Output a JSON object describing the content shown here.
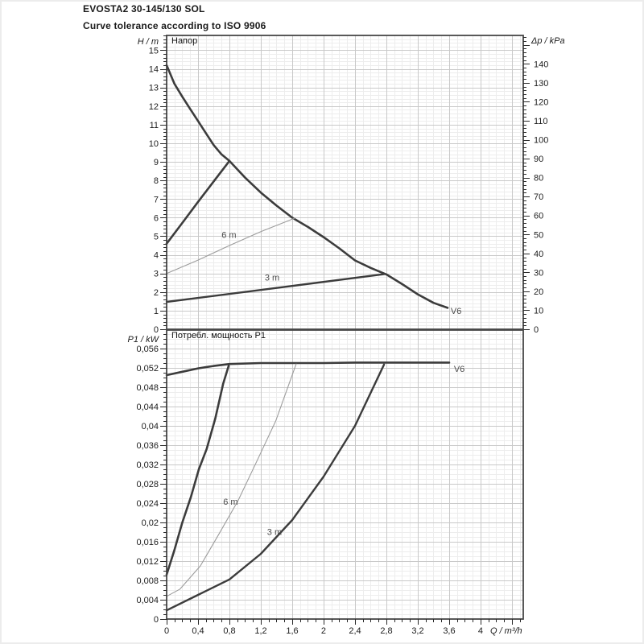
{
  "header": {
    "title": "EVOSTA2 30-145/130 SOL",
    "subtitle": "Curve tolerance according to ISO 9906"
  },
  "colors": {
    "curve_dark": "#3c3c3c",
    "curve_light": "#9c9c9c",
    "grid_major": "#c9c9c9",
    "grid_minor": "#ededed",
    "frame": "#474747",
    "text": "#1c1c1c"
  },
  "chart_data": [
    {
      "type": "line",
      "name": "head-chart",
      "title": "Напор",
      "ylabel": "H / m",
      "y2label": "Δp / kPa",
      "xlabel": "",
      "xlim": [
        0,
        4.544
      ],
      "ylim": [
        0,
        15.8
      ],
      "x_major": 0.4,
      "x_minor": 0.1,
      "y_major": 1,
      "y_minor": 0.2,
      "y_ticks": [
        "0",
        "1",
        "2",
        "3",
        "4",
        "5",
        "6",
        "7",
        "8",
        "9",
        "10",
        "11",
        "12",
        "13",
        "14",
        "15"
      ],
      "y2_ticks": [
        "0",
        "10",
        "20",
        "30",
        "40",
        "50",
        "60",
        "70",
        "80",
        "90",
        "100",
        "110",
        "120",
        "130",
        "140"
      ],
      "y2_minor_step": 2,
      "y2_major_step": 10,
      "kpa_per_m": 9.81,
      "grid": true,
      "legend_position": "none",
      "series": [
        {
          "name": "max-speed-V6",
          "label": "V6",
          "color": "#3c3c3c",
          "width": 2.6,
          "points": [
            [
              0,
              14.2
            ],
            [
              0.1,
              13.2
            ],
            [
              0.2,
              12.5
            ],
            [
              0.3,
              11.85
            ],
            [
              0.4,
              11.2
            ],
            [
              0.5,
              10.55
            ],
            [
              0.6,
              9.9
            ],
            [
              0.7,
              9.4
            ],
            [
              0.8,
              9.05
            ],
            [
              0.9,
              8.6
            ],
            [
              1.0,
              8.15
            ],
            [
              1.2,
              7.35
            ],
            [
              1.4,
              6.65
            ],
            [
              1.6,
              6.0
            ],
            [
              1.8,
              5.5
            ],
            [
              2.0,
              4.95
            ],
            [
              2.2,
              4.35
            ],
            [
              2.4,
              3.7
            ],
            [
              2.6,
              3.3
            ],
            [
              2.8,
              2.95
            ],
            [
              3.0,
              2.43
            ],
            [
              3.2,
              1.88
            ],
            [
              3.4,
              1.42
            ],
            [
              3.58,
              1.15
            ]
          ]
        },
        {
          "name": "prop-pressure-max",
          "label": "",
          "color": "#3c3c3c",
          "width": 2.6,
          "points": [
            [
              0,
              4.6
            ],
            [
              0.2,
              5.72
            ],
            [
              0.4,
              6.85
            ],
            [
              0.6,
              7.95
            ],
            [
              0.8,
              9.05
            ]
          ]
        },
        {
          "name": "const-pressure-6m",
          "label": "6 m",
          "color": "#9c9c9c",
          "width": 1.1,
          "points": [
            [
              0,
              3.0
            ],
            [
              0.4,
              3.72
            ],
            [
              0.8,
              4.5
            ],
            [
              1.2,
              5.25
            ],
            [
              1.63,
              5.97
            ]
          ]
        },
        {
          "name": "const-pressure-3m",
          "label": "3 m",
          "color": "#3c3c3c",
          "width": 2.4,
          "points": [
            [
              0,
              1.47
            ],
            [
              1.4,
              2.22
            ],
            [
              2.78,
              2.97
            ]
          ]
        }
      ],
      "annotations": [
        {
          "text": "6 m",
          "x": 0.7,
          "y": 4.92
        },
        {
          "text": "3 m",
          "x": 1.25,
          "y": 2.62
        },
        {
          "text": "V6",
          "x": 3.62,
          "y": 0.82
        }
      ]
    },
    {
      "type": "line",
      "name": "power-chart",
      "title": "Потребл. мощность P1",
      "ylabel": "P1 / kW",
      "xlabel": "Q / m³/h",
      "xlim": [
        0,
        4.544
      ],
      "ylim": [
        0,
        0.059833
      ],
      "x_major": 0.4,
      "x_minor": 0.1,
      "y_major": 0.004,
      "y_minor": 0.001,
      "y_ticks": [
        "0",
        "0,004",
        "0,008",
        "0,012",
        "0,016",
        "0,02",
        "0,024",
        "0,028",
        "0,032",
        "0,036",
        "0,04",
        "0,044",
        "0,048",
        "0,052",
        "0,056"
      ],
      "x_ticks": [
        "0",
        "0,4",
        "0,8",
        "1,2",
        "1,6",
        "2",
        "2,4",
        "2,8",
        "3,2",
        "3,6",
        "4"
      ],
      "grid": true,
      "legend_position": "none",
      "series": [
        {
          "name": "max-speed-V6-power",
          "label": "V6",
          "color": "#3c3c3c",
          "width": 2.6,
          "points": [
            [
              0,
              0.0505
            ],
            [
              0.2,
              0.0512
            ],
            [
              0.4,
              0.0519
            ],
            [
              0.6,
              0.0524
            ],
            [
              0.8,
              0.0528
            ],
            [
              1.2,
              0.053
            ],
            [
              1.6,
              0.053
            ],
            [
              2.0,
              0.053
            ],
            [
              2.4,
              0.0531
            ],
            [
              2.8,
              0.0531
            ],
            [
              3.2,
              0.0531
            ],
            [
              3.6,
              0.0531
            ]
          ]
        },
        {
          "name": "prop-pressure-max-power",
          "label": "",
          "color": "#3c3c3c",
          "width": 2.6,
          "points": [
            [
              0,
              0.0092
            ],
            [
              0.1,
              0.0143
            ],
            [
              0.2,
              0.02
            ],
            [
              0.31,
              0.0253
            ],
            [
              0.41,
              0.031
            ],
            [
              0.51,
              0.0352
            ],
            [
              0.62,
              0.0415
            ],
            [
              0.72,
              0.0487
            ],
            [
              0.79,
              0.0524
            ]
          ]
        },
        {
          "name": "const-pressure-6m-power",
          "label": "6 m",
          "color": "#9c9c9c",
          "width": 1.1,
          "points": [
            [
              0,
              0.0047
            ],
            [
              0.17,
              0.0062
            ],
            [
              0.43,
              0.011
            ],
            [
              0.67,
              0.0177
            ],
            [
              0.91,
              0.0245
            ],
            [
              1.15,
              0.0327
            ],
            [
              1.39,
              0.041
            ],
            [
              1.65,
              0.0528
            ]
          ]
        },
        {
          "name": "const-pressure-3m-power",
          "label": "3 m",
          "color": "#3c3c3c",
          "width": 2.4,
          "points": [
            [
              0,
              0.0018
            ],
            [
              0.4,
              0.005
            ],
            [
              0.8,
              0.0082
            ],
            [
              1.2,
              0.0135
            ],
            [
              1.6,
              0.0205
            ],
            [
              2.0,
              0.0295
            ],
            [
              2.4,
              0.04
            ],
            [
              2.77,
              0.0527
            ]
          ]
        }
      ],
      "annotations": [
        {
          "text": "6 m",
          "x": 0.72,
          "y": 0.0237
        },
        {
          "text": "3 m",
          "x": 1.28,
          "y": 0.0174
        },
        {
          "text": "V6",
          "x": 3.66,
          "y": 0.0512
        }
      ]
    }
  ]
}
